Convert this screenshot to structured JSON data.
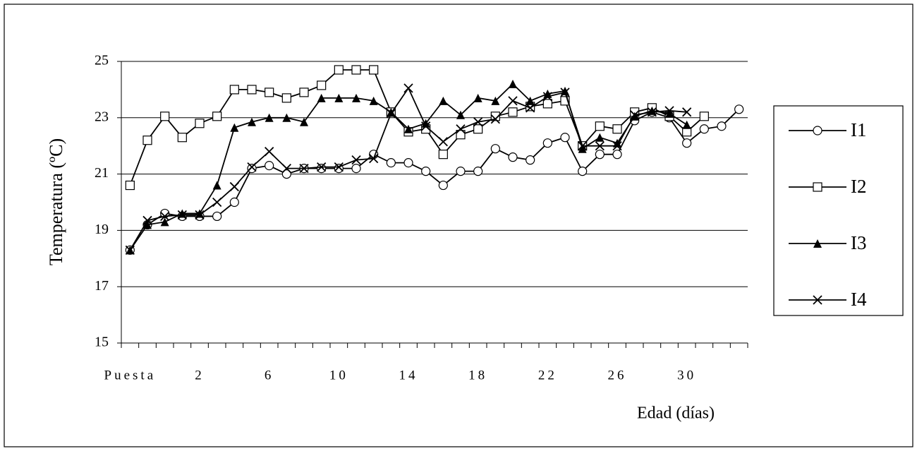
{
  "chart_data": {
    "type": "line",
    "y_label": "Temperatura (ºC)",
    "x_label": "Edad (días)",
    "categories": [
      "Puesta",
      null,
      null,
      null,
      "2",
      null,
      null,
      null,
      "6",
      null,
      null,
      null,
      "10",
      null,
      null,
      null,
      "14",
      null,
      null,
      null,
      "18",
      null,
      null,
      null,
      "22",
      null,
      null,
      null,
      "26",
      null,
      null,
      null,
      "30",
      null,
      null,
      null
    ],
    "ylim": [
      15,
      25
    ],
    "yticks": [
      15,
      17,
      19,
      21,
      23,
      25
    ],
    "grid": true,
    "legend": "right",
    "series": [
      {
        "name": "I1",
        "color": "#000000",
        "marker": "circle",
        "values": [
          18.3,
          19.2,
          19.6,
          19.5,
          19.5,
          19.5,
          20.0,
          21.2,
          21.3,
          21.0,
          21.2,
          21.2,
          21.2,
          21.2,
          21.7,
          21.4,
          21.4,
          21.1,
          20.6,
          21.1,
          21.1,
          21.9,
          21.6,
          21.5,
          22.1,
          22.3,
          21.1,
          21.7,
          21.7,
          22.9,
          23.2,
          23.0,
          22.1,
          22.6,
          22.7,
          23.3
        ]
      },
      {
        "name": "I2",
        "color": "#000000",
        "marker": "square",
        "values": [
          20.6,
          22.2,
          23.05,
          22.3,
          22.8,
          23.05,
          24.0,
          24.0,
          23.9,
          23.7,
          23.9,
          24.15,
          24.7,
          24.7,
          24.7,
          23.2,
          22.5,
          22.6,
          21.7,
          22.4,
          22.6,
          23.05,
          23.2,
          23.4,
          23.5,
          23.6,
          22.0,
          22.7,
          22.6,
          23.2,
          23.35,
          23.05,
          22.5,
          23.05,
          null,
          null
        ]
      },
      {
        "name": "I3",
        "color": "#000000",
        "marker": "triangle",
        "values": [
          18.3,
          19.2,
          19.3,
          19.6,
          19.6,
          20.6,
          22.65,
          22.85,
          23.0,
          23.0,
          22.85,
          23.7,
          23.7,
          23.7,
          23.6,
          23.2,
          22.6,
          22.8,
          23.6,
          23.1,
          23.7,
          23.6,
          24.2,
          23.6,
          23.85,
          23.95,
          21.9,
          22.3,
          22.1,
          23.05,
          23.25,
          23.15,
          22.75,
          null,
          null,
          null
        ]
      },
      {
        "name": "I4",
        "color": "#000000",
        "marker": "x",
        "values": [
          18.3,
          19.35,
          19.5,
          19.55,
          19.55,
          20.0,
          20.55,
          21.25,
          21.8,
          21.2,
          21.2,
          21.25,
          21.25,
          21.5,
          21.55,
          23.15,
          24.05,
          22.7,
          22.15,
          22.6,
          22.85,
          22.95,
          23.6,
          23.35,
          23.75,
          23.9,
          22.0,
          22.0,
          22.0,
          23.1,
          23.2,
          23.25,
          23.2,
          null,
          null,
          null
        ]
      }
    ]
  }
}
